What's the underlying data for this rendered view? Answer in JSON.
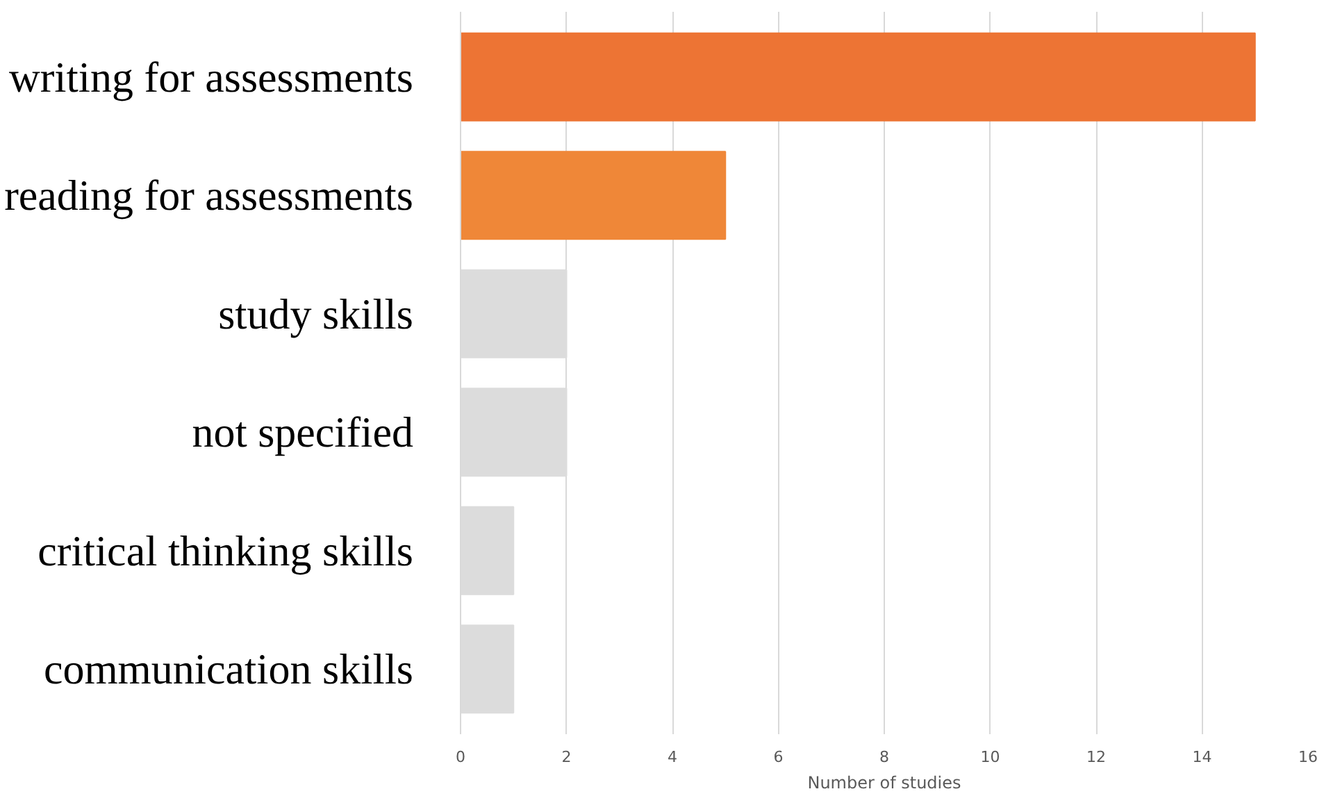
{
  "chart_data": {
    "type": "bar",
    "orientation": "horizontal",
    "xlabel": "Number of studies",
    "categories": [
      "writing for assessments",
      "reading for assessments",
      "study skills",
      "not specified",
      "critical thinking skills",
      "communication skills"
    ],
    "values": [
      15,
      5,
      2,
      2,
      1,
      1
    ],
    "colors": [
      "#ed7434",
      "#ef8738",
      "#dcdcdc",
      "#dcdcdc",
      "#dcdcdc",
      "#dcdcdc"
    ],
    "xlim": [
      0,
      16
    ],
    "xticks": [
      0,
      2,
      4,
      6,
      8,
      10,
      12,
      14,
      16
    ],
    "grid": "x"
  }
}
